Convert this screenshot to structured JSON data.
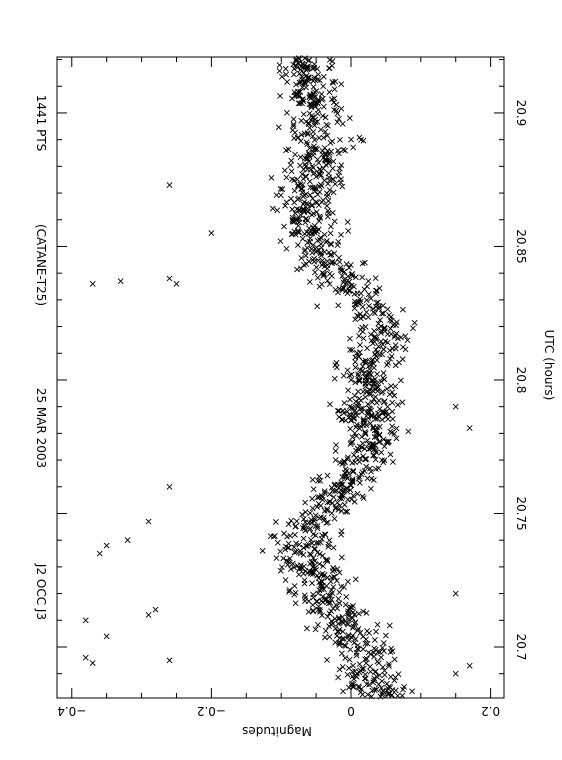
{
  "chart_data": {
    "type": "scatter",
    "orientation": "rotated-90-clockwise",
    "header": {
      "object": "J2 OCC J3",
      "date": "25 MAR 2003",
      "observatory": "(CATANE-T25)",
      "points": "1441 PTS"
    },
    "xlabel": "UTC (hours)",
    "ylabel": "Magnitudes",
    "xlim": [
      20.678,
      20.922
    ],
    "ylim": [
      -0.41,
      0.215
    ],
    "y_inverted": true,
    "x_ticks": [
      {
        "value": 20.7,
        "label": "20.7"
      },
      {
        "value": 20.75,
        "label": "20.75"
      },
      {
        "value": 20.8,
        "label": "20.8"
      },
      {
        "value": 20.85,
        "label": "20.85"
      },
      {
        "value": 20.9,
        "label": "20.9"
      }
    ],
    "y_ticks": [
      {
        "value": -0.4,
        "label": "−0.4"
      },
      {
        "value": -0.2,
        "label": "−0.2"
      },
      {
        "value": 0,
        "label": "0"
      },
      {
        "value": 0.2,
        "label": "0.2"
      }
    ],
    "marker": "x",
    "grid": false,
    "legend": "none",
    "n_points": 1441,
    "trend_points": [
      {
        "x": 20.68,
        "y": 0.04
      },
      {
        "x": 20.69,
        "y": 0.03
      },
      {
        "x": 20.7,
        "y": 0.02
      },
      {
        "x": 20.71,
        "y": -0.01
      },
      {
        "x": 20.72,
        "y": -0.04
      },
      {
        "x": 20.73,
        "y": -0.06
      },
      {
        "x": 20.74,
        "y": -0.07
      },
      {
        "x": 20.75,
        "y": -0.04
      },
      {
        "x": 20.76,
        "y": -0.01
      },
      {
        "x": 20.77,
        "y": 0.02
      },
      {
        "x": 20.78,
        "y": 0.03
      },
      {
        "x": 20.79,
        "y": 0.03
      },
      {
        "x": 20.8,
        "y": 0.02
      },
      {
        "x": 20.81,
        "y": 0.03
      },
      {
        "x": 20.82,
        "y": 0.04
      },
      {
        "x": 20.83,
        "y": 0.02
      },
      {
        "x": 20.84,
        "y": -0.02
      },
      {
        "x": 20.85,
        "y": -0.05
      },
      {
        "x": 20.86,
        "y": -0.06
      },
      {
        "x": 20.87,
        "y": -0.06
      },
      {
        "x": 20.88,
        "y": -0.05
      },
      {
        "x": 20.89,
        "y": -0.04
      },
      {
        "x": 20.9,
        "y": -0.05
      },
      {
        "x": 20.91,
        "y": -0.06
      },
      {
        "x": 20.92,
        "y": -0.06
      }
    ],
    "scatter_sd": 0.045,
    "outliers": [
      {
        "x": 20.694,
        "y": -0.37
      },
      {
        "x": 20.696,
        "y": -0.38
      },
      {
        "x": 20.704,
        "y": -0.35
      },
      {
        "x": 20.71,
        "y": -0.38
      },
      {
        "x": 20.695,
        "y": -0.26
      },
      {
        "x": 20.712,
        "y": -0.29
      },
      {
        "x": 20.714,
        "y": -0.28
      },
      {
        "x": 20.735,
        "y": -0.36
      },
      {
        "x": 20.738,
        "y": -0.35
      },
      {
        "x": 20.74,
        "y": -0.32
      },
      {
        "x": 20.747,
        "y": -0.29
      },
      {
        "x": 20.76,
        "y": -0.26
      },
      {
        "x": 20.837,
        "y": -0.33
      },
      {
        "x": 20.836,
        "y": -0.37
      },
      {
        "x": 20.836,
        "y": -0.25
      },
      {
        "x": 20.838,
        "y": -0.26
      },
      {
        "x": 20.873,
        "y": -0.26
      },
      {
        "x": 20.855,
        "y": -0.2
      },
      {
        "x": 20.782,
        "y": 0.17
      },
      {
        "x": 20.79,
        "y": 0.15
      },
      {
        "x": 20.693,
        "y": 0.17
      },
      {
        "x": 20.69,
        "y": 0.15
      },
      {
        "x": 20.72,
        "y": 0.15
      }
    ],
    "colors": {
      "foreground": "#000000",
      "background": "#ffffff"
    }
  }
}
